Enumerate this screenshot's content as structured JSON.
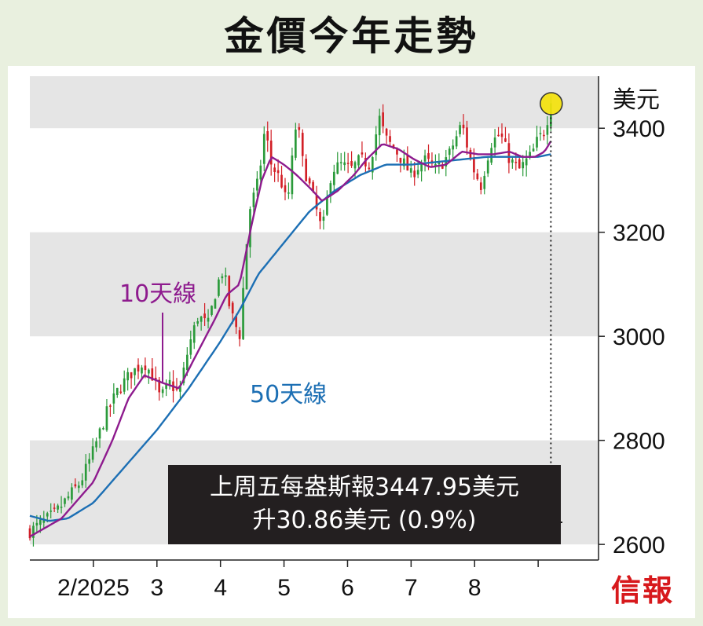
{
  "header": {
    "title": "金價今年走勢"
  },
  "callout": {
    "line1": "上周五每盎斯報3447.95美元",
    "line2": "升30.86美元 (0.9%)"
  },
  "brand": {
    "logo_text": "信報"
  },
  "colors": {
    "candle_up": "#2a9a3a",
    "candle_down": "#d21f26",
    "ma10": "#8e1b8e",
    "ma50": "#1c6fb4",
    "highlight": "#f4e20c"
  },
  "chart_data": {
    "type": "candlestick",
    "title": "金價今年走勢",
    "unit_label": "美元",
    "ylim": [
      2570,
      3500
    ],
    "yticks": [
      2600,
      2800,
      3000,
      3200,
      3400
    ],
    "ytick_labels": [
      "2600",
      "2800",
      "3000",
      "3200",
      "3400"
    ],
    "x_domain": [
      0,
      8.95
    ],
    "xticks": [
      {
        "pos": 1,
        "label": "2/2025"
      },
      {
        "pos": 2,
        "label": "3"
      },
      {
        "pos": 3,
        "label": "4"
      },
      {
        "pos": 4,
        "label": "5"
      },
      {
        "pos": 5,
        "label": "6"
      },
      {
        "pos": 6,
        "label": "7"
      },
      {
        "pos": 7,
        "label": "8"
      },
      {
        "pos": 8,
        "label": ""
      }
    ],
    "grid_bands": [
      [
        3400,
        3500
      ],
      [
        3000,
        3200
      ],
      [
        2600,
        2800
      ]
    ],
    "close_anchors": [
      [
        0.0,
        2625
      ],
      [
        0.4,
        2660
      ],
      [
        0.8,
        2720
      ],
      [
        1.0,
        2780
      ],
      [
        1.2,
        2850
      ],
      [
        1.4,
        2900
      ],
      [
        1.6,
        2930
      ],
      [
        1.8,
        2950
      ],
      [
        1.95,
        2920
      ],
      [
        2.05,
        2880
      ],
      [
        2.2,
        2910
      ],
      [
        2.35,
        2890
      ],
      [
        2.5,
        2980
      ],
      [
        2.65,
        3040
      ],
      [
        2.8,
        3020
      ],
      [
        2.95,
        3100
      ],
      [
        3.05,
        3130
      ],
      [
        3.15,
        3050
      ],
      [
        3.3,
        3000
      ],
      [
        3.45,
        3240
      ],
      [
        3.6,
        3300
      ],
      [
        3.7,
        3400
      ],
      [
        3.8,
        3330
      ],
      [
        3.95,
        3300
      ],
      [
        4.05,
        3250
      ],
      [
        4.2,
        3420
      ],
      [
        4.3,
        3330
      ],
      [
        4.45,
        3270
      ],
      [
        4.6,
        3200
      ],
      [
        4.75,
        3320
      ],
      [
        4.9,
        3330
      ],
      [
        5.05,
        3320
      ],
      [
        5.2,
        3340
      ],
      [
        5.35,
        3330
      ],
      [
        5.5,
        3420
      ],
      [
        5.6,
        3380
      ],
      [
        5.8,
        3350
      ],
      [
        6.0,
        3310
      ],
      [
        6.2,
        3340
      ],
      [
        6.4,
        3320
      ],
      [
        6.6,
        3350
      ],
      [
        6.8,
        3410
      ],
      [
        6.95,
        3330
      ],
      [
        7.1,
        3290
      ],
      [
        7.25,
        3370
      ],
      [
        7.4,
        3390
      ],
      [
        7.55,
        3340
      ],
      [
        7.7,
        3320
      ],
      [
        7.9,
        3350
      ],
      [
        8.0,
        3380
      ],
      [
        8.08,
        3390
      ],
      [
        8.15,
        3420
      ],
      [
        8.2,
        3447.95
      ]
    ],
    "ma10_anchors": [
      [
        0.0,
        2615
      ],
      [
        0.5,
        2650
      ],
      [
        1.0,
        2720
      ],
      [
        1.3,
        2800
      ],
      [
        1.55,
        2880
      ],
      [
        1.8,
        2925
      ],
      [
        2.1,
        2910
      ],
      [
        2.35,
        2900
      ],
      [
        2.6,
        2960
      ],
      [
        2.9,
        3030
      ],
      [
        3.1,
        3080
      ],
      [
        3.3,
        3100
      ],
      [
        3.5,
        3220
      ],
      [
        3.65,
        3300
      ],
      [
        3.8,
        3345
      ],
      [
        4.0,
        3330
      ],
      [
        4.2,
        3310
      ],
      [
        4.45,
        3280
      ],
      [
        4.6,
        3260
      ],
      [
        4.85,
        3280
      ],
      [
        5.1,
        3310
      ],
      [
        5.3,
        3340
      ],
      [
        5.55,
        3370
      ],
      [
        5.8,
        3360
      ],
      [
        6.05,
        3340
      ],
      [
        6.3,
        3325
      ],
      [
        6.55,
        3330
      ],
      [
        6.8,
        3355
      ],
      [
        7.05,
        3350
      ],
      [
        7.3,
        3350
      ],
      [
        7.55,
        3355
      ],
      [
        7.75,
        3345
      ],
      [
        7.95,
        3345
      ],
      [
        8.1,
        3355
      ],
      [
        8.2,
        3375
      ]
    ],
    "ma50_anchors": [
      [
        0.0,
        2655
      ],
      [
        0.3,
        2645
      ],
      [
        0.6,
        2650
      ],
      [
        1.0,
        2680
      ],
      [
        1.5,
        2750
      ],
      [
        2.0,
        2820
      ],
      [
        2.5,
        2900
      ],
      [
        3.0,
        2990
      ],
      [
        3.3,
        3050
      ],
      [
        3.6,
        3120
      ],
      [
        4.0,
        3180
      ],
      [
        4.4,
        3240
      ],
      [
        4.8,
        3280
      ],
      [
        5.2,
        3310
      ],
      [
        5.6,
        3330
      ],
      [
        6.0,
        3330
      ],
      [
        6.4,
        3335
      ],
      [
        6.8,
        3340
      ],
      [
        7.2,
        3345
      ],
      [
        7.6,
        3345
      ],
      [
        8.0,
        3345
      ],
      [
        8.2,
        3350
      ]
    ],
    "series": [
      {
        "name": "10天線",
        "label": "10天線",
        "color": "#8e1b8e"
      },
      {
        "name": "50天線",
        "label": "50天線",
        "color": "#1c6fb4"
      }
    ],
    "last_close": 3447.95,
    "last_x": 8.2
  }
}
